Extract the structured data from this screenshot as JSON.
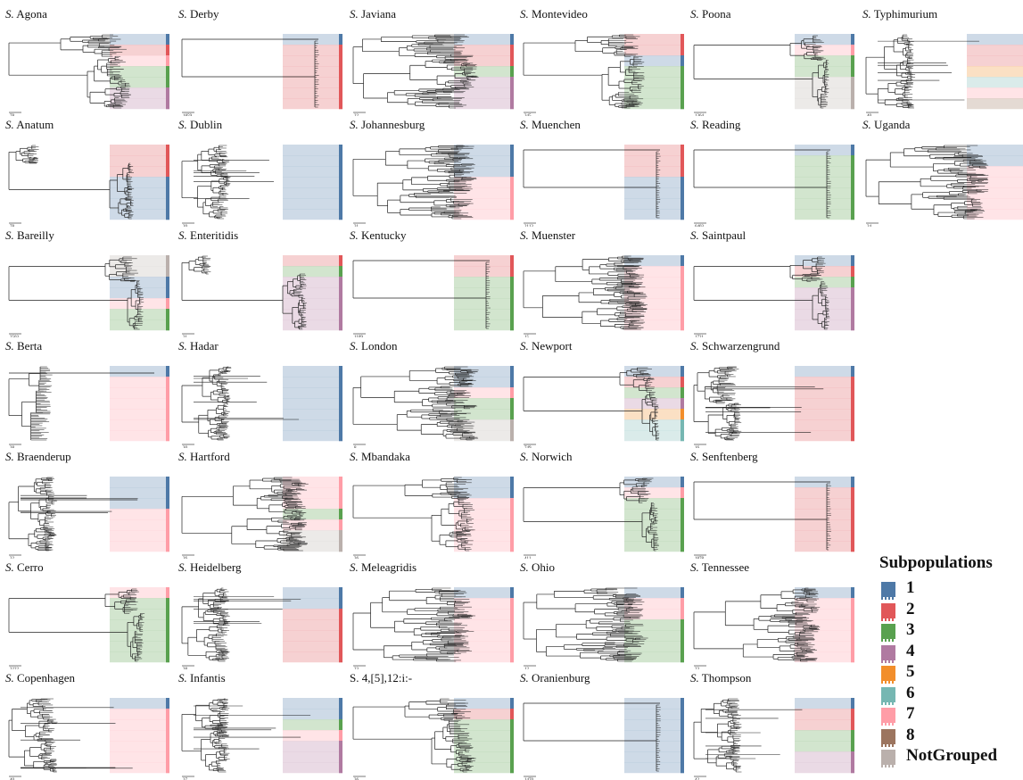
{
  "panels": [
    {
      "prefix": "S.",
      "name": "Agona",
      "scale": "78",
      "bands": [
        1,
        2,
        7,
        3,
        3,
        4,
        4
      ],
      "shape": "a"
    },
    {
      "prefix": "S.",
      "name": "Anatum",
      "scale": "78",
      "bands": [
        2,
        2,
        2,
        1,
        1,
        1,
        1
      ],
      "shape": "b"
    },
    {
      "prefix": "S.",
      "name": "Bareilly",
      "scale": "2503",
      "bands": [
        9,
        9,
        1,
        1,
        7,
        3,
        3
      ],
      "shape": "c"
    },
    {
      "prefix": "S.",
      "name": "Berta",
      "scale": "38",
      "bands": [
        1,
        7,
        7,
        7,
        7,
        7,
        7
      ],
      "shape": "d"
    },
    {
      "prefix": "S.",
      "name": "Braenderup",
      "scale": "32",
      "bands": [
        1,
        1,
        1,
        7,
        7,
        7,
        7
      ],
      "shape": "e"
    },
    {
      "prefix": "S.",
      "name": "Cerro",
      "scale": "3222",
      "bands": [
        7,
        3,
        3,
        3,
        3,
        3,
        3
      ],
      "shape": "c"
    },
    {
      "prefix": "S.",
      "name": "Copenhagen",
      "scale": "40",
      "bands": [
        1,
        7,
        7,
        7,
        7,
        7,
        7
      ],
      "shape": "e"
    },
    {
      "prefix": "S.",
      "name": "Derby",
      "scale": "1859",
      "bands": [
        1,
        2,
        2,
        2,
        2,
        2,
        2
      ],
      "shape": "f"
    },
    {
      "prefix": "S.",
      "name": "Dublin",
      "scale": "20",
      "bands": [
        1,
        1,
        1,
        1,
        1,
        1,
        1
      ],
      "shape": "e"
    },
    {
      "prefix": "S.",
      "name": "Enteritidis",
      "scale": "31",
      "bands": [
        2,
        3,
        4,
        4,
        4,
        4,
        4
      ],
      "shape": "b"
    },
    {
      "prefix": "S.",
      "name": "Hadar",
      "scale": "30",
      "bands": [
        1,
        1,
        1,
        1,
        1,
        1,
        1
      ],
      "shape": "e"
    },
    {
      "prefix": "S.",
      "name": "Hartford",
      "scale": "26",
      "bands": [
        7,
        7,
        7,
        3,
        7,
        9,
        9
      ],
      "shape": "g"
    },
    {
      "prefix": "S.",
      "name": "Heidelberg",
      "scale": "38",
      "bands": [
        1,
        1,
        2,
        2,
        2,
        2,
        2
      ],
      "shape": "e"
    },
    {
      "prefix": "S.",
      "name": "Infantis",
      "scale": "37",
      "bands": [
        1,
        1,
        3,
        7,
        4,
        4,
        4
      ],
      "shape": "e"
    },
    {
      "prefix": "S.",
      "name": "Javiana",
      "scale": "22",
      "bands": [
        1,
        2,
        2,
        3,
        4,
        4,
        4
      ],
      "shape": "g"
    },
    {
      "prefix": "S.",
      "name": "Johannesburg",
      "scale": "31",
      "bands": [
        1,
        1,
        1,
        7,
        7,
        7,
        7
      ],
      "shape": "g"
    },
    {
      "prefix": "S.",
      "name": "Kentucky",
      "scale": "1109",
      "bands": [
        2,
        2,
        3,
        3,
        3,
        3,
        3
      ],
      "shape": "f"
    },
    {
      "prefix": "S.",
      "name": "London",
      "scale": "8",
      "bands": [
        1,
        1,
        7,
        3,
        3,
        9,
        9
      ],
      "shape": "g"
    },
    {
      "prefix": "S.",
      "name": "Mbandaka",
      "scale": "36",
      "bands": [
        1,
        1,
        7,
        7,
        7,
        7,
        7
      ],
      "shape": "a"
    },
    {
      "prefix": "S.",
      "name": "Meleagridis",
      "scale": "23",
      "bands": [
        1,
        7,
        7,
        7,
        7,
        7,
        7
      ],
      "shape": "g"
    },
    {
      "prefix": "",
      "name": "S. 4,[5],12:i:-",
      "scale": "36",
      "bands": [
        1,
        2,
        3,
        3,
        3,
        3,
        3
      ],
      "shape": "a"
    },
    {
      "prefix": "S.",
      "name": "Montevideo",
      "scale": "345",
      "bands": [
        2,
        2,
        1,
        3,
        3,
        3,
        3
      ],
      "shape": "a"
    },
    {
      "prefix": "S.",
      "name": "Muenchen",
      "scale": "2113",
      "bands": [
        2,
        2,
        2,
        1,
        1,
        1,
        1
      ],
      "shape": "f"
    },
    {
      "prefix": "S.",
      "name": "Muenster",
      "scale": "15",
      "bands": [
        1,
        7,
        7,
        7,
        7,
        7,
        7
      ],
      "shape": "g"
    },
    {
      "prefix": "S.",
      "name": "Newport",
      "scale": "749",
      "bands": [
        1,
        2,
        3,
        4,
        5,
        6,
        6
      ],
      "shape": "c"
    },
    {
      "prefix": "S.",
      "name": "Norwich",
      "scale": "411",
      "bands": [
        1,
        7,
        3,
        3,
        3,
        3,
        3
      ],
      "shape": "c"
    },
    {
      "prefix": "S.",
      "name": "Ohio",
      "scale": "12",
      "bands": [
        1,
        7,
        7,
        3,
        3,
        3,
        3
      ],
      "shape": "g"
    },
    {
      "prefix": "S.",
      "name": "Oranienburg",
      "scale": "1470",
      "bands": [
        1,
        1,
        1,
        1,
        1,
        1,
        1
      ],
      "shape": "f"
    },
    {
      "prefix": "S.",
      "name": "Poona",
      "scale": "1364",
      "bands": [
        1,
        7,
        3,
        3,
        9,
        9,
        9
      ],
      "shape": "c"
    },
    {
      "prefix": "S.",
      "name": "Reading",
      "scale": "6403",
      "bands": [
        1,
        3,
        3,
        3,
        3,
        3,
        3
      ],
      "shape": "f"
    },
    {
      "prefix": "S.",
      "name": "Saintpaul",
      "scale": "1721",
      "bands": [
        1,
        2,
        3,
        4,
        4,
        4,
        4
      ],
      "shape": "c"
    },
    {
      "prefix": "S.",
      "name": "Schwarzengrund",
      "scale": "16",
      "bands": [
        1,
        2,
        2,
        2,
        2,
        2,
        2
      ],
      "shape": "e"
    },
    {
      "prefix": "S.",
      "name": "Senftenberg",
      "scale": "1878",
      "bands": [
        1,
        2,
        2,
        2,
        2,
        2,
        2
      ],
      "shape": "f"
    },
    {
      "prefix": "S.",
      "name": "Tennessee",
      "scale": "23",
      "bands": [
        1,
        7,
        7,
        7,
        7,
        7,
        7
      ],
      "shape": "g"
    },
    {
      "prefix": "S.",
      "name": "Thompson",
      "scale": "42",
      "bands": [
        1,
        2,
        2,
        3,
        3,
        4,
        4
      ],
      "shape": "e"
    },
    {
      "prefix": "S.",
      "name": "Typhimurium",
      "scale": "40",
      "bands": [
        1,
        2,
        2,
        5,
        6,
        7,
        8
      ],
      "shape": "e"
    },
    {
      "prefix": "S.",
      "name": "Uganda",
      "scale": "24",
      "bands": [
        1,
        1,
        7,
        7,
        7,
        7,
        7
      ],
      "shape": "g"
    }
  ],
  "legend": {
    "title": "Subpopulations",
    "items": [
      {
        "label": "1",
        "color": "#4e79a7"
      },
      {
        "label": "2",
        "color": "#e15759"
      },
      {
        "label": "3",
        "color": "#59a14f"
      },
      {
        "label": "4",
        "color": "#b07aa1"
      },
      {
        "label": "5",
        "color": "#f28e2b"
      },
      {
        "label": "6",
        "color": "#76b7b2"
      },
      {
        "label": "7",
        "color": "#ff9da7"
      },
      {
        "label": "8",
        "color": "#9c755f"
      },
      {
        "label": "NotGrouped",
        "color": "#bab0ac"
      }
    ]
  }
}
